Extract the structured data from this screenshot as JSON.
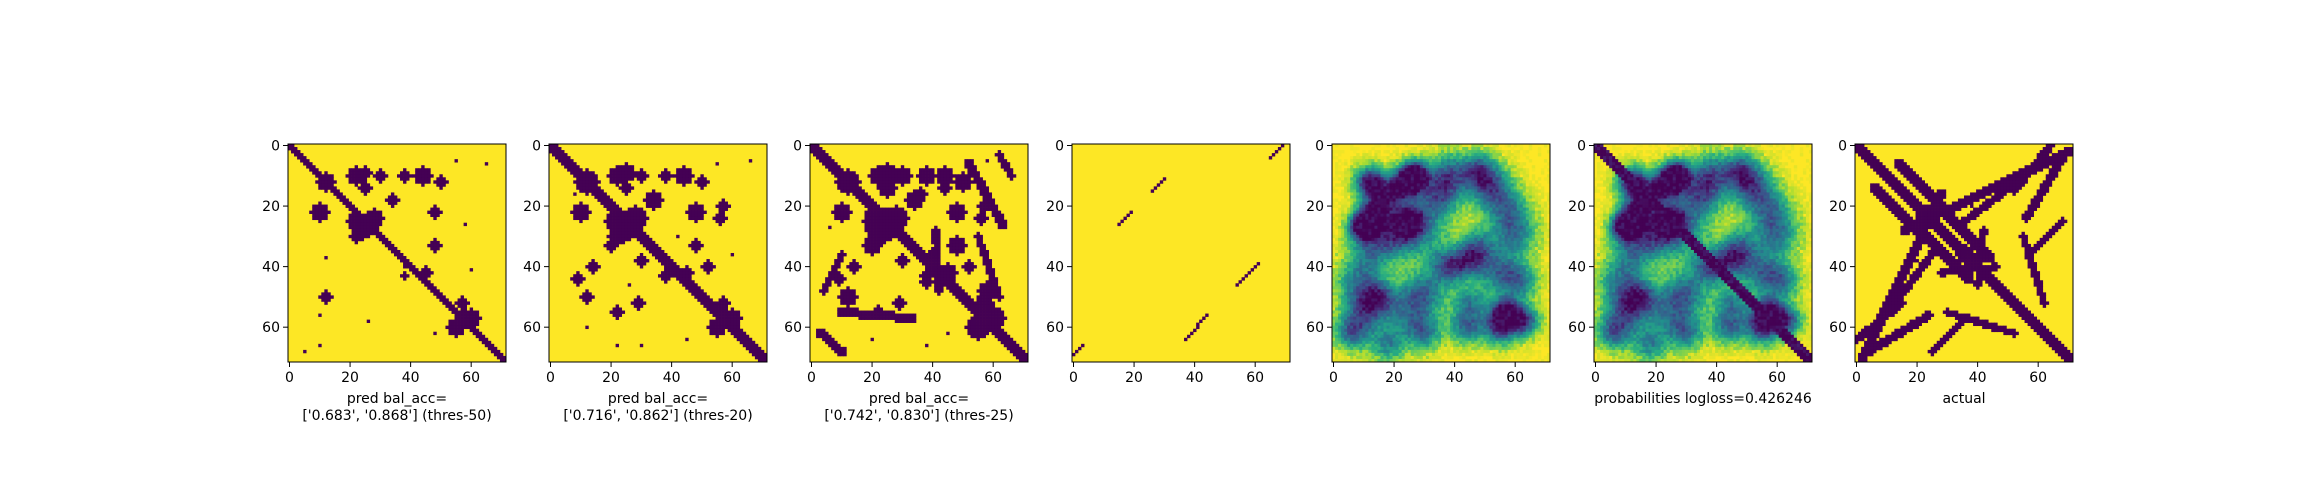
{
  "figure": {
    "background": "#ffffff",
    "colormap": "viridis",
    "colors": {
      "background_class": "#fde725",
      "contact_class": "#440154"
    }
  },
  "chart_data": [
    {
      "type": "heatmap",
      "kind": "binary",
      "xlabel_lines": [
        "pred bal_acc=",
        "['0.683', '0.868'] (thres-50)"
      ],
      "xticks": [
        0,
        20,
        40,
        60
      ],
      "yticks": [
        0,
        20,
        40,
        60
      ],
      "xlim": [
        0,
        70
      ],
      "ylim": [
        70,
        0
      ],
      "diagonal": {
        "offsets": [
          0
        ],
        "half_width": 1.6
      },
      "blobs": [
        [
          12,
          12,
          3
        ],
        [
          9,
          25,
          2
        ],
        [
          14,
          25,
          2
        ],
        [
          10,
          30,
          2
        ],
        [
          22,
          10,
          3
        ],
        [
          10,
          22,
          3
        ],
        [
          25,
          22,
          3
        ],
        [
          26,
          26,
          4
        ],
        [
          24,
          28,
          3
        ],
        [
          28,
          24,
          3
        ],
        [
          30,
          22,
          2
        ],
        [
          10,
          38,
          2
        ],
        [
          10,
          44,
          3
        ],
        [
          18,
          34,
          2
        ],
        [
          22,
          48,
          2
        ],
        [
          33,
          48,
          2
        ],
        [
          50,
          12,
          2
        ],
        [
          12,
          50,
          2
        ],
        [
          60,
          55,
          3
        ],
        [
          57,
          60,
          3
        ],
        [
          52,
          57,
          2
        ],
        [
          56,
          58,
          2
        ],
        [
          42,
          45,
          2
        ],
        [
          43,
          38,
          1
        ]
      ],
      "dots": [
        [
          8,
          8
        ],
        [
          5,
          55
        ],
        [
          6,
          65
        ],
        [
          26,
          58
        ],
        [
          58,
          26
        ],
        [
          37,
          12
        ],
        [
          40,
          38
        ],
        [
          41,
          60
        ],
        [
          56,
          10
        ],
        [
          62,
          48
        ],
        [
          68,
          5
        ],
        [
          66,
          10
        ]
      ]
    },
    {
      "type": "heatmap",
      "kind": "binary",
      "xlabel_lines": [
        "pred bal_acc=",
        "['0.716', '0.862'] (thres-20)"
      ],
      "xticks": [
        0,
        20,
        40,
        60
      ],
      "yticks": [
        0,
        20,
        40,
        60
      ],
      "xlim": [
        0,
        70
      ],
      "ylim": [
        70,
        0
      ],
      "diagonal": {
        "offsets": [
          0
        ],
        "half_width": 2.2
      },
      "blobs": [
        [
          12,
          12,
          4
        ],
        [
          9,
          25,
          3
        ],
        [
          14,
          25,
          2
        ],
        [
          10,
          30,
          2
        ],
        [
          22,
          10,
          3
        ],
        [
          10,
          22,
          3
        ],
        [
          25,
          22,
          4
        ],
        [
          26,
          26,
          5
        ],
        [
          24,
          28,
          4
        ],
        [
          28,
          24,
          4
        ],
        [
          30,
          22,
          3
        ],
        [
          10,
          38,
          2
        ],
        [
          10,
          44,
          3
        ],
        [
          18,
          34,
          3
        ],
        [
          22,
          48,
          3
        ],
        [
          33,
          48,
          2
        ],
        [
          50,
          12,
          2
        ],
        [
          12,
          50,
          2
        ],
        [
          60,
          55,
          3
        ],
        [
          57,
          60,
          3
        ],
        [
          52,
          57,
          2
        ],
        [
          56,
          58,
          2
        ],
        [
          42,
          45,
          2
        ],
        [
          43,
          38,
          2
        ],
        [
          20,
          57,
          2
        ],
        [
          24,
          56,
          2
        ],
        [
          33,
          20,
          2
        ],
        [
          40,
          14,
          2
        ],
        [
          44,
          9,
          2
        ],
        [
          40,
          52,
          2
        ],
        [
          38,
          30,
          2
        ],
        [
          55,
          22,
          2
        ],
        [
          52,
          29,
          2
        ]
      ],
      "dots": [
        [
          6,
          55
        ],
        [
          5,
          66
        ],
        [
          16,
          8
        ],
        [
          30,
          42
        ],
        [
          46,
          26
        ],
        [
          60,
          12
        ],
        [
          66,
          22
        ],
        [
          66,
          30
        ],
        [
          64,
          45
        ],
        [
          48,
          48
        ],
        [
          36,
          60
        ],
        [
          62,
          62
        ]
      ]
    },
    {
      "type": "heatmap",
      "kind": "binary",
      "xlabel_lines": [
        "pred bal_acc=",
        "['0.742', '0.830'] (thres-25)"
      ],
      "xticks": [
        0,
        20,
        40,
        60
      ],
      "yticks": [
        0,
        20,
        40,
        60
      ],
      "xlim": [
        0,
        70
      ],
      "ylim": [
        70,
        0
      ],
      "diagonal": {
        "offsets": [
          0
        ],
        "half_width": 2.4
      },
      "blobs": [
        [
          12,
          12,
          4
        ],
        [
          9,
          25,
          3
        ],
        [
          14,
          25,
          3
        ],
        [
          10,
          30,
          3
        ],
        [
          22,
          10,
          3
        ],
        [
          10,
          22,
          3
        ],
        [
          25,
          22,
          5
        ],
        [
          26,
          26,
          5
        ],
        [
          24,
          28,
          4
        ],
        [
          28,
          24,
          4
        ],
        [
          30,
          22,
          3
        ],
        [
          10,
          38,
          3
        ],
        [
          10,
          44,
          3
        ],
        [
          18,
          34,
          3
        ],
        [
          22,
          48,
          3
        ],
        [
          33,
          48,
          3
        ],
        [
          50,
          12,
          3
        ],
        [
          12,
          50,
          3
        ],
        [
          60,
          55,
          4
        ],
        [
          57,
          60,
          4
        ],
        [
          52,
          57,
          3
        ],
        [
          56,
          58,
          3
        ],
        [
          42,
          45,
          3
        ],
        [
          43,
          38,
          2
        ],
        [
          20,
          57,
          2
        ],
        [
          24,
          56,
          2
        ],
        [
          33,
          20,
          3
        ],
        [
          40,
          14,
          2
        ],
        [
          44,
          9,
          2
        ],
        [
          40,
          52,
          2
        ],
        [
          38,
          30,
          2
        ],
        [
          55,
          22,
          2
        ],
        [
          52,
          29,
          2
        ],
        [
          14,
          44,
          2
        ],
        [
          16,
          36,
          2
        ],
        [
          36,
          40,
          2
        ],
        [
          45,
          38,
          2
        ],
        [
          48,
          58,
          3
        ]
      ],
      "strokes": [
        [
          6,
          52,
          26,
          63,
          1.5
        ],
        [
          3,
          62,
          10,
          66,
          1.2
        ],
        [
          36,
          10,
          48,
          4,
          1.3
        ],
        [
          62,
          3,
          68,
          10,
          1.5
        ],
        [
          55,
          10,
          57,
          33,
          1.5
        ],
        [
          28,
          41,
          48,
          42,
          1.2
        ],
        [
          30,
          55,
          50,
          62,
          1.2
        ]
      ],
      "dots": [
        [
          5,
          58
        ],
        [
          8,
          64
        ],
        [
          27,
          6
        ],
        [
          64,
          20
        ],
        [
          66,
          38
        ],
        [
          62,
          45
        ]
      ]
    },
    {
      "type": "heatmap",
      "kind": "binary",
      "xlabel_lines": [],
      "xticks": [
        0,
        20,
        40,
        60
      ],
      "yticks": [
        0,
        20,
        40,
        60
      ],
      "xlim": [
        0,
        70
      ],
      "ylim": [
        70,
        0
      ],
      "segments": [
        [
          0,
          69,
          3,
          66
        ],
        [
          15,
          26,
          19,
          22
        ],
        [
          26,
          15,
          30,
          11
        ],
        [
          37,
          64,
          44,
          56
        ],
        [
          54,
          46,
          61,
          39
        ],
        [
          65,
          4,
          69,
          0
        ]
      ]
    },
    {
      "type": "heatmap",
      "kind": "probability",
      "xlabel_lines": [],
      "xticks": [
        0,
        20,
        40,
        60
      ],
      "yticks": [
        0,
        20,
        40,
        60
      ],
      "xlim": [
        0,
        70
      ],
      "ylim": [
        70,
        0
      ],
      "value_range": [
        0,
        1
      ],
      "diagonal": null,
      "blobs": [
        [
          12,
          12,
          3.5,
          1
        ],
        [
          25,
          12,
          3.5,
          1
        ],
        [
          12,
          25,
          3.5,
          1
        ],
        [
          25,
          25,
          3.5,
          1
        ],
        [
          9,
          27,
          3,
          0.8
        ],
        [
          27,
          9,
          3,
          0.8
        ],
        [
          20,
          15,
          4,
          0.6
        ],
        [
          15,
          20,
          4,
          0.6
        ],
        [
          10,
          38,
          5,
          0.7
        ],
        [
          8,
          48,
          4,
          0.6
        ],
        [
          14,
          52,
          5,
          0.7
        ],
        [
          18,
          34,
          5,
          0.6
        ],
        [
          30,
          20,
          5,
          0.6
        ],
        [
          35,
          12,
          5,
          0.5
        ],
        [
          33,
          48,
          4,
          0.5
        ],
        [
          30,
          60,
          5,
          0.5
        ],
        [
          40,
          38,
          4,
          0.7
        ],
        [
          38,
          45,
          4,
          0.6
        ],
        [
          42,
          55,
          5,
          0.6
        ],
        [
          48,
          30,
          5,
          0.5
        ],
        [
          55,
          57,
          3.5,
          0.9
        ],
        [
          60,
          55,
          4,
          0.8
        ],
        [
          58,
          63,
          3.5,
          0.8
        ],
        [
          50,
          15,
          4,
          0.6
        ],
        [
          45,
          8,
          5,
          0.5
        ],
        [
          55,
          10,
          5,
          0.6
        ],
        [
          62,
          6,
          4,
          0.6
        ],
        [
          55,
          25,
          6,
          0.5
        ],
        [
          62,
          30,
          4,
          0.5
        ],
        [
          52,
          45,
          4,
          0.5
        ],
        [
          60,
          44,
          4,
          0.6
        ],
        [
          30,
          30,
          6,
          0.4
        ],
        [
          22,
          58,
          5,
          0.5
        ],
        [
          45,
          62,
          4,
          0.5
        ],
        [
          66,
          18,
          4,
          0.5
        ]
      ]
    },
    {
      "type": "heatmap",
      "kind": "probability",
      "xlabel_lines": [
        "probabilities logloss=0.426246"
      ],
      "xticks": [
        0,
        20,
        40,
        60
      ],
      "yticks": [
        0,
        20,
        40,
        60
      ],
      "xlim": [
        0,
        70
      ],
      "ylim": [
        70,
        0
      ],
      "value_range": [
        0,
        1
      ],
      "diagonal": {
        "offsets": [
          0
        ],
        "half_width": 2.6
      },
      "blobs": [
        [
          12,
          12,
          3.5,
          1
        ],
        [
          25,
          12,
          3.5,
          1
        ],
        [
          12,
          25,
          3.5,
          1
        ],
        [
          25,
          25,
          3.5,
          1
        ],
        [
          9,
          27,
          3,
          0.8
        ],
        [
          27,
          9,
          3,
          0.8
        ],
        [
          20,
          15,
          4,
          0.6
        ],
        [
          15,
          20,
          4,
          0.6
        ],
        [
          10,
          38,
          5,
          0.7
        ],
        [
          8,
          48,
          4,
          0.6
        ],
        [
          14,
          52,
          5,
          0.7
        ],
        [
          18,
          34,
          5,
          0.6
        ],
        [
          30,
          20,
          5,
          0.6
        ],
        [
          35,
          12,
          5,
          0.5
        ],
        [
          33,
          48,
          4,
          0.5
        ],
        [
          30,
          60,
          5,
          0.5
        ],
        [
          40,
          38,
          4,
          0.7
        ],
        [
          38,
          45,
          4,
          0.6
        ],
        [
          42,
          55,
          5,
          0.6
        ],
        [
          48,
          30,
          5,
          0.5
        ],
        [
          55,
          57,
          3.5,
          0.9
        ],
        [
          60,
          55,
          4,
          0.8
        ],
        [
          58,
          63,
          3.5,
          0.8
        ],
        [
          50,
          15,
          4,
          0.6
        ],
        [
          45,
          8,
          5,
          0.5
        ],
        [
          55,
          10,
          5,
          0.6
        ],
        [
          62,
          6,
          4,
          0.6
        ],
        [
          55,
          25,
          6,
          0.5
        ],
        [
          62,
          30,
          4,
          0.5
        ],
        [
          52,
          45,
          4,
          0.5
        ],
        [
          60,
          44,
          4,
          0.6
        ],
        [
          30,
          30,
          6,
          0.4
        ],
        [
          22,
          58,
          5,
          0.5
        ],
        [
          45,
          62,
          4,
          0.5
        ],
        [
          66,
          18,
          4,
          0.5
        ]
      ]
    },
    {
      "type": "heatmap",
      "kind": "binary",
      "xlabel_lines": [
        "actual"
      ],
      "xticks": [
        0,
        20,
        40,
        60
      ],
      "yticks": [
        0,
        20,
        40,
        60
      ],
      "xlim": [
        0,
        70
      ],
      "ylim": [
        70,
        0
      ],
      "diagonal": {
        "offsets": [
          0
        ],
        "half_width": 2.0
      },
      "strokes": [
        [
          14,
          6,
          44,
          37,
          1.8
        ],
        [
          6,
          14,
          37,
          44,
          1.8
        ],
        [
          2,
          70,
          28,
          16,
          1.6
        ],
        [
          16,
          28,
          70,
          2,
          1.6
        ],
        [
          4,
          68,
          24,
          56,
          1.4
        ],
        [
          56,
          24,
          68,
          4,
          1.4
        ],
        [
          0,
          64,
          15,
          52,
          1.4
        ],
        [
          52,
          15,
          64,
          0,
          1.4
        ],
        [
          33,
          27,
          53,
          12,
          1.3
        ],
        [
          27,
          33,
          12,
          53,
          1.3
        ],
        [
          28,
          42,
          46,
          40,
          1.2
        ],
        [
          42,
          28,
          40,
          46,
          1.2
        ],
        [
          30,
          55,
          52,
          62,
          1.2
        ],
        [
          55,
          30,
          62,
          52,
          1.2
        ],
        [
          58,
          35,
          68,
          25,
          1.2
        ],
        [
          35,
          58,
          25,
          68,
          1.2
        ]
      ],
      "blobs": [
        [
          23,
          23,
          3.5
        ],
        [
          36,
          36,
          3
        ],
        [
          12,
          12,
          2
        ]
      ],
      "dots": [
        [
          18,
          40
        ],
        [
          40,
          18
        ],
        [
          20,
          38
        ],
        [
          38,
          20
        ]
      ]
    }
  ]
}
